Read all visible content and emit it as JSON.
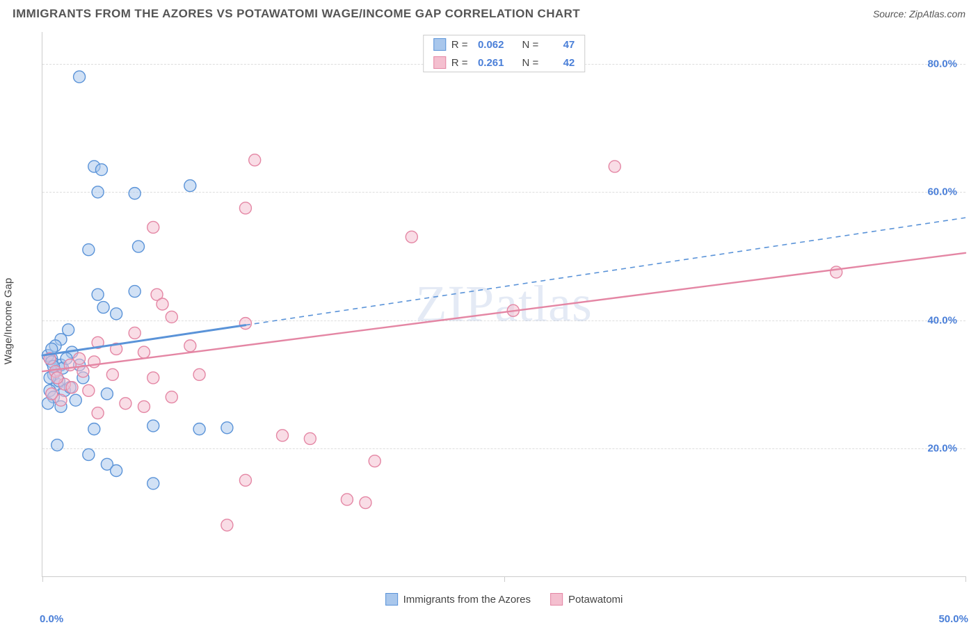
{
  "header": {
    "title": "IMMIGRANTS FROM THE AZORES VS POTAWATOMI WAGE/INCOME GAP CORRELATION CHART",
    "source_prefix": "Source: ",
    "source_name": "ZipAtlas.com"
  },
  "watermark": "ZIPatlas",
  "chart": {
    "type": "scatter",
    "ylabel": "Wage/Income Gap",
    "xlim": [
      0,
      50
    ],
    "ylim": [
      0,
      85
    ],
    "xtick_positions": [
      0,
      25,
      50
    ],
    "xtick_labels": [
      "0.0%",
      "",
      "50.0%"
    ],
    "ytick_positions": [
      20,
      40,
      60,
      80
    ],
    "ytick_labels": [
      "20.0%",
      "40.0%",
      "60.0%",
      "80.0%"
    ],
    "grid_color": "#dddddd",
    "axis_color": "#cccccc",
    "background_color": "#ffffff",
    "tick_label_color": "#4a7fd8",
    "axis_label_color": "#444444",
    "tick_label_fontsize": 15,
    "marker_radius": 8.5,
    "marker_fill_opacity": 0.28,
    "marker_stroke_width": 1.4,
    "series": [
      {
        "name": "Immigrants from the Azores",
        "color_stroke": "#5a93d8",
        "color_fill": "#a9c7ec",
        "R": "0.062",
        "N": "47",
        "points": [
          [
            2.0,
            78.0
          ],
          [
            1.0,
            33.0
          ],
          [
            0.5,
            34.0
          ],
          [
            0.8,
            30.0
          ],
          [
            0.6,
            31.5
          ],
          [
            1.2,
            29.0
          ],
          [
            2.8,
            64.0
          ],
          [
            3.2,
            63.5
          ],
          [
            3.0,
            60.0
          ],
          [
            5.0,
            59.8
          ],
          [
            8.0,
            61.0
          ],
          [
            2.5,
            51.0
          ],
          [
            5.2,
            51.5
          ],
          [
            3.0,
            44.0
          ],
          [
            3.3,
            42.0
          ],
          [
            4.0,
            41.0
          ],
          [
            5.0,
            44.5
          ],
          [
            1.4,
            38.5
          ],
          [
            1.0,
            37.0
          ],
          [
            0.7,
            36.0
          ],
          [
            1.6,
            35.0
          ],
          [
            0.3,
            34.5
          ],
          [
            0.5,
            33.5
          ],
          [
            2.0,
            33.0
          ],
          [
            2.2,
            31.0
          ],
          [
            0.9,
            30.5
          ],
          [
            1.5,
            29.5
          ],
          [
            0.4,
            29.0
          ],
          [
            0.6,
            28.0
          ],
          [
            1.8,
            27.5
          ],
          [
            0.3,
            27.0
          ],
          [
            3.5,
            28.5
          ],
          [
            1.0,
            26.5
          ],
          [
            2.8,
            23.0
          ],
          [
            6.0,
            23.5
          ],
          [
            8.5,
            23.0
          ],
          [
            10.0,
            23.2
          ],
          [
            2.5,
            19.0
          ],
          [
            0.8,
            20.5
          ],
          [
            3.5,
            17.5
          ],
          [
            4.0,
            16.5
          ],
          [
            6.0,
            14.5
          ],
          [
            0.5,
            35.5
          ],
          [
            1.1,
            32.5
          ],
          [
            0.4,
            31.0
          ],
          [
            1.3,
            34.0
          ],
          [
            0.6,
            32.8
          ]
        ],
        "trend": {
          "y_at_x0": 34.5,
          "y_at_xmax": 56.0,
          "solid_until_x": 11.0,
          "solid_stroke_width": 3,
          "dashed_stroke_width": 1.6,
          "dash": "7,6"
        }
      },
      {
        "name": "Potawatomi",
        "color_stroke": "#e486a4",
        "color_fill": "#f4bfcf",
        "R": "0.261",
        "N": "42",
        "points": [
          [
            11.5,
            65.0
          ],
          [
            31.0,
            64.0
          ],
          [
            11.0,
            57.5
          ],
          [
            6.0,
            54.5
          ],
          [
            20.0,
            53.0
          ],
          [
            6.2,
            44.0
          ],
          [
            6.5,
            42.5
          ],
          [
            7.0,
            40.5
          ],
          [
            5.0,
            38.0
          ],
          [
            11.0,
            39.5
          ],
          [
            3.0,
            36.5
          ],
          [
            4.0,
            35.5
          ],
          [
            2.0,
            34.0
          ],
          [
            5.5,
            35.0
          ],
          [
            8.0,
            36.0
          ],
          [
            1.5,
            33.0
          ],
          [
            0.7,
            32.0
          ],
          [
            3.8,
            31.5
          ],
          [
            6.0,
            31.0
          ],
          [
            8.5,
            31.5
          ],
          [
            2.5,
            29.0
          ],
          [
            1.0,
            27.5
          ],
          [
            4.5,
            27.0
          ],
          [
            5.5,
            26.5
          ],
          [
            3.0,
            25.5
          ],
          [
            7.0,
            28.0
          ],
          [
            13.0,
            22.0
          ],
          [
            14.5,
            21.5
          ],
          [
            11.0,
            15.0
          ],
          [
            18.0,
            18.0
          ],
          [
            16.5,
            12.0
          ],
          [
            17.5,
            11.5
          ],
          [
            10.0,
            8.0
          ],
          [
            25.5,
            41.5
          ],
          [
            43.0,
            47.5
          ],
          [
            1.2,
            30.0
          ],
          [
            0.5,
            28.5
          ],
          [
            2.8,
            33.5
          ],
          [
            0.8,
            31.0
          ],
          [
            1.6,
            29.5
          ],
          [
            0.4,
            34.0
          ],
          [
            2.2,
            32.0
          ]
        ],
        "trend": {
          "y_at_x0": 32.0,
          "y_at_xmax": 50.5,
          "solid_until_x": 50.0,
          "solid_stroke_width": 2.4,
          "dashed_stroke_width": 0,
          "dash": ""
        }
      }
    ],
    "legend_bottom": [
      {
        "label": "Immigrants from the Azores",
        "stroke": "#5a93d8",
        "fill": "#a9c7ec"
      },
      {
        "label": "Potawatomi",
        "stroke": "#e486a4",
        "fill": "#f4bfcf"
      }
    ]
  }
}
